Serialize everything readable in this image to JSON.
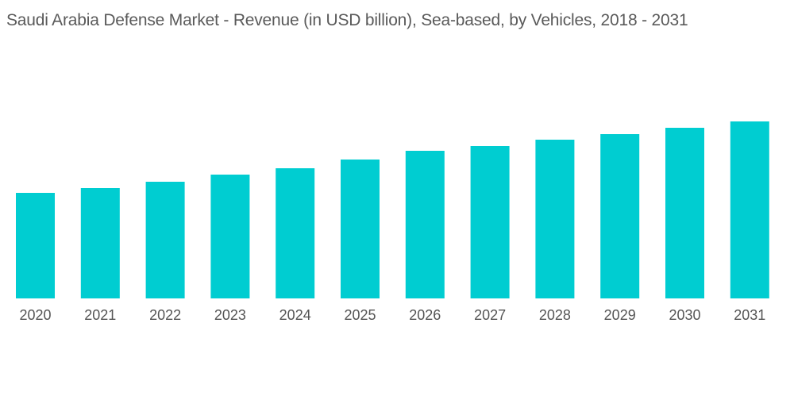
{
  "chart_data": {
    "type": "bar",
    "title": "Saudi Arabia Defense Market - Revenue (in USD billion), Sea-based, by Vehicles, 2018 - 2031",
    "xlabel": "",
    "ylabel": "",
    "categories": [
      "2020",
      "2021",
      "2022",
      "2023",
      "2024",
      "2025",
      "2026",
      "2027",
      "2028",
      "2029",
      "2030",
      "2031"
    ],
    "values": [
      1.33,
      1.39,
      1.47,
      1.56,
      1.64,
      1.75,
      1.86,
      1.92,
      2.0,
      2.07,
      2.15,
      2.23
    ],
    "ylim": [
      0,
      2.5
    ],
    "grid": false,
    "y_axis_shown": false,
    "bar_color": "#00CDD1"
  }
}
